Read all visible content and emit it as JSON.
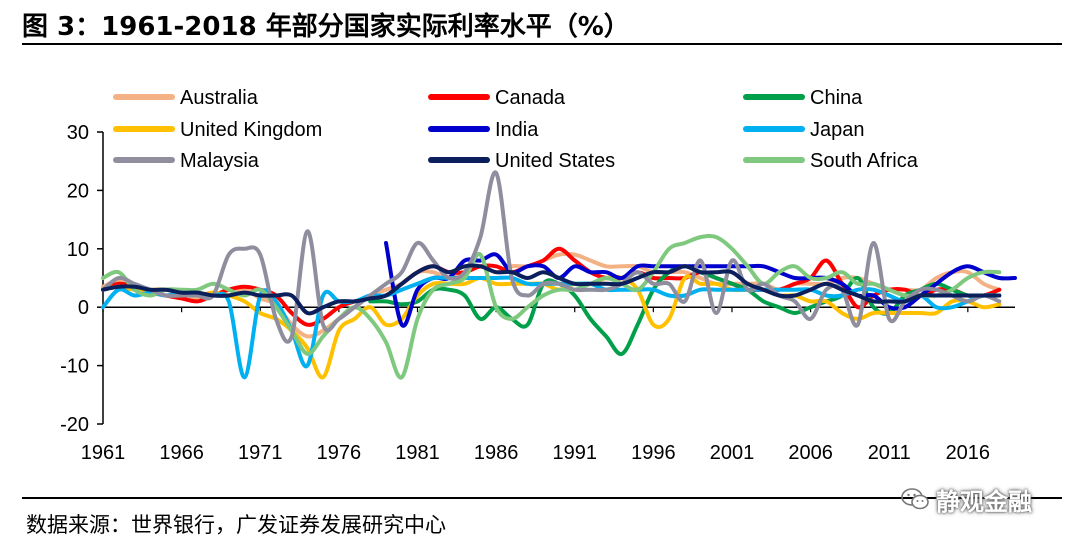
{
  "title": "图 3：1961-2018 年部分国家实际利率水平（%）",
  "source": "数据来源：世界银行，广发证券发展研究中心",
  "watermark": "静观金融",
  "chart_data": {
    "type": "line",
    "title": "",
    "xlabel": "",
    "ylabel": "",
    "xlim": [
      1961,
      2019
    ],
    "ylim": [
      -20,
      30
    ],
    "y_ticks": [
      -20,
      -10,
      0,
      10,
      20,
      30
    ],
    "x_ticks": [
      1961,
      1966,
      1971,
      1976,
      1981,
      1986,
      1991,
      1996,
      2001,
      2006,
      2011,
      2016
    ],
    "grid": false,
    "legend_position": "top",
    "series": [
      {
        "name": "Australia",
        "color": "#F4B183",
        "start": 1961,
        "values": [
          3.5,
          4.5,
          3,
          2,
          3,
          2.5,
          1.5,
          2.5,
          2,
          3,
          1.5,
          0.5,
          -3,
          -5,
          -4,
          -2,
          0,
          2,
          3,
          4,
          6,
          6,
          5,
          6,
          7,
          6,
          7,
          7,
          8,
          9,
          9,
          8,
          7,
          7,
          7,
          6,
          6,
          6,
          5,
          4,
          4,
          4,
          4,
          3,
          4,
          4,
          4,
          5,
          5,
          4,
          3,
          3,
          3,
          5,
          6,
          6,
          4,
          3
        ]
      },
      {
        "name": "Canada",
        "color": "#FF0000",
        "start": 1961,
        "values": [
          3,
          4,
          3.5,
          2.5,
          2,
          1.5,
          1,
          2,
          3,
          3.5,
          3,
          2,
          -1,
          -3,
          -2,
          0,
          1,
          1.5,
          2,
          4,
          6,
          7,
          6,
          6,
          7,
          7,
          6,
          7,
          8,
          10,
          8,
          6,
          5,
          5,
          6,
          5,
          5,
          5,
          6,
          5,
          4,
          3,
          3,
          3,
          4,
          5,
          8,
          4,
          0,
          2,
          3,
          3,
          2,
          3,
          3,
          2,
          2,
          3
        ]
      },
      {
        "name": "China",
        "color": "#00A04A",
        "start": 1978,
        "values": [
          1,
          1,
          0.5,
          1,
          3,
          3,
          2,
          -2,
          0,
          -2,
          -3,
          4,
          4,
          2,
          -2,
          -5,
          -8,
          -3,
          3,
          6,
          7,
          6,
          5,
          4,
          3,
          1,
          0,
          -1,
          0,
          1,
          2,
          5,
          0,
          -1,
          2,
          3,
          4,
          3,
          2,
          2,
          2
        ]
      },
      {
        "name": "United Kingdom",
        "color": "#FFC000",
        "start": 1961,
        "values": [
          3,
          3.5,
          3,
          3,
          3,
          2.5,
          2,
          2.5,
          2,
          1,
          -1,
          -2,
          -4,
          -7,
          -12,
          -4,
          -2,
          0,
          -3,
          -2,
          2,
          4,
          4,
          4,
          5,
          4,
          4,
          4,
          4,
          3,
          4,
          4,
          5,
          5,
          3,
          -3,
          -2,
          5,
          4,
          4,
          3,
          3,
          3,
          2,
          2,
          1,
          1,
          -1,
          -2,
          -1,
          -1,
          -1,
          -1,
          -1,
          1,
          1,
          0,
          0.5
        ]
      },
      {
        "name": "India",
        "color": "#0000CC",
        "start": 1979,
        "values": [
          11,
          -3,
          3,
          5,
          5,
          8,
          8,
          9,
          6,
          7,
          7,
          5,
          7,
          6,
          6,
          5,
          7,
          7,
          7,
          7,
          7,
          7,
          7,
          7,
          7,
          6,
          5,
          5,
          5,
          4,
          2,
          2,
          0,
          0,
          2,
          4,
          6,
          7,
          6,
          5,
          5
        ]
      },
      {
        "name": "Japan",
        "color": "#00B0F0",
        "start": 1961,
        "values": [
          0,
          3,
          2,
          2.5,
          2,
          2.5,
          2,
          2,
          1,
          -12,
          2,
          1,
          -4,
          -10,
          2,
          1,
          1,
          2,
          2,
          3,
          4,
          5,
          5,
          5,
          5,
          5,
          5,
          4,
          4,
          4,
          4,
          4,
          3,
          3,
          3,
          3,
          2,
          2,
          3,
          3,
          3,
          3,
          3,
          3,
          3,
          3,
          2,
          2,
          3,
          3,
          2,
          1,
          2,
          0,
          0,
          1,
          2,
          2
        ]
      },
      {
        "name": "Malaysia",
        "color": "#8E8E9E",
        "start": 1961,
        "values": [
          3,
          5,
          4,
          3,
          2,
          2,
          2,
          2,
          9,
          10,
          9,
          -2,
          -5,
          13,
          -3,
          -2,
          0,
          2,
          4,
          6,
          11,
          8,
          5,
          6,
          12,
          23,
          5,
          2,
          4,
          4,
          3,
          3,
          3,
          4,
          6,
          4,
          4,
          1,
          8,
          -1,
          8,
          3,
          4,
          2,
          1,
          -2,
          3,
          3,
          -3,
          11,
          -2,
          1,
          3,
          3,
          2,
          1,
          2,
          1
        ]
      },
      {
        "name": "United States",
        "color": "#0A1F5C",
        "start": 1961,
        "values": [
          3,
          3.5,
          3.5,
          3,
          3,
          2.5,
          2.5,
          2,
          2,
          2.5,
          2,
          2,
          2,
          -1,
          0,
          1,
          1,
          1.5,
          2,
          4,
          6,
          7,
          6,
          7,
          7,
          6,
          6,
          5,
          6,
          5,
          4,
          4,
          4,
          4,
          5,
          6,
          6,
          7,
          6,
          6,
          6,
          4,
          3,
          2,
          2,
          3,
          4,
          3,
          2,
          1,
          1,
          1,
          2,
          2,
          2,
          2,
          2,
          2
        ]
      },
      {
        "name": "South Africa",
        "color": "#7FC97F",
        "start": 1961,
        "values": [
          5,
          6,
          3,
          2,
          3,
          3,
          3,
          4,
          3,
          2,
          3,
          0,
          -4,
          -8,
          -5,
          -2,
          0,
          -2,
          -6,
          -12,
          -2,
          3,
          4,
          5,
          9,
          0,
          -2,
          0,
          2,
          3,
          3,
          4,
          5,
          4,
          3,
          6,
          10,
          11,
          12,
          12,
          10,
          7,
          4,
          6,
          7,
          5,
          5,
          6,
          4,
          4,
          3,
          2,
          2,
          2,
          3,
          5,
          6,
          6
        ]
      }
    ]
  }
}
